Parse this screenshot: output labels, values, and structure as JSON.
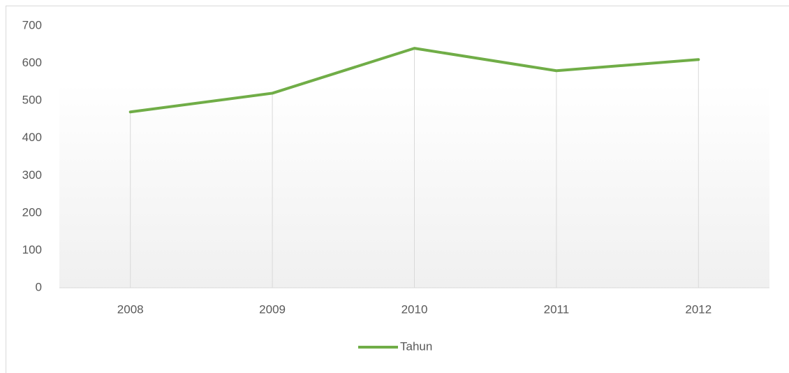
{
  "chart_data": {
    "type": "line",
    "categories": [
      "2008",
      "2009",
      "2010",
      "2011",
      "2012"
    ],
    "series": [
      {
        "name": "Tahun",
        "color": "#70ad47",
        "values": [
          470,
          520,
          640,
          580,
          610
        ]
      }
    ],
    "ylim": [
      0,
      700
    ],
    "yticks": [
      0,
      100,
      200,
      300,
      400,
      500,
      600,
      700
    ],
    "drop_lines": true,
    "legend": "bottom"
  }
}
